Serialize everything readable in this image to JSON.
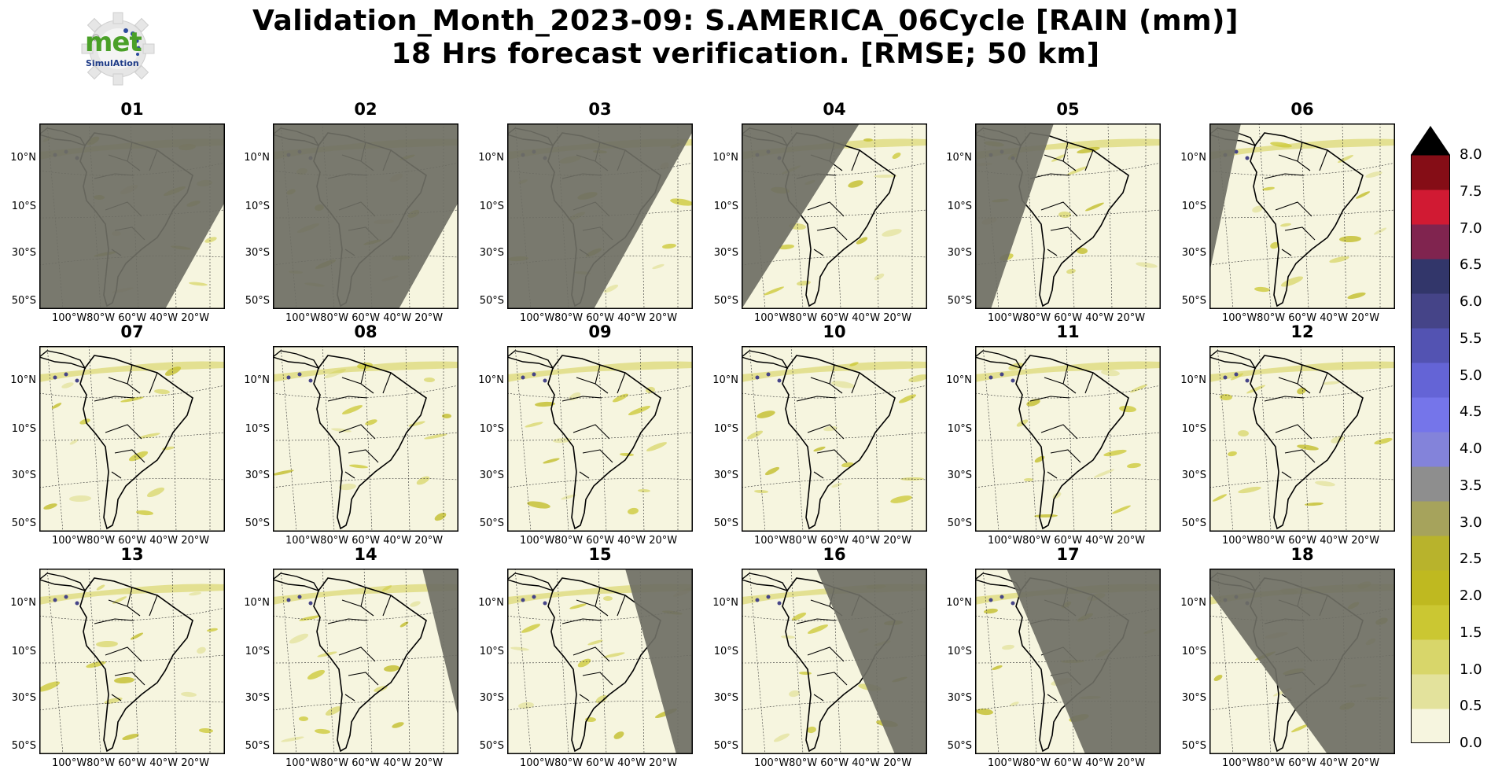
{
  "figure": {
    "title_line1": "Validation_Month_2023-09: S.AMERICA_06Cycle [RAIN (mm)]",
    "title_line2": "18 Hrs forecast verification.  [RMSE; 50 km]",
    "logo": {
      "text_main": "met",
      "text_sub": "SimulAtion",
      "icon": "gear-logo-icon"
    }
  },
  "panels": [
    {
      "label": "01",
      "shade": "right-lower"
    },
    {
      "label": "02",
      "shade": "right-lower"
    },
    {
      "label": "03",
      "shade": "right-diag"
    },
    {
      "label": "04",
      "shade": "left"
    },
    {
      "label": "05",
      "shade": "left-narrow"
    },
    {
      "label": "06",
      "shade": "left-thin"
    },
    {
      "label": "07",
      "shade": "none"
    },
    {
      "label": "08",
      "shade": "none"
    },
    {
      "label": "09",
      "shade": "none"
    },
    {
      "label": "10",
      "shade": "none"
    },
    {
      "label": "11",
      "shade": "none"
    },
    {
      "label": "12",
      "shade": "none"
    },
    {
      "label": "13",
      "shade": "none"
    },
    {
      "label": "14",
      "shade": "right-thin"
    },
    {
      "label": "15",
      "shade": "right-narrow"
    },
    {
      "label": "16",
      "shade": "right"
    },
    {
      "label": "17",
      "shade": "right-wide"
    },
    {
      "label": "18",
      "shade": "right-full"
    }
  ],
  "axes": {
    "lat_ticks": [
      "10°N",
      "10°S",
      "30°S",
      "50°S"
    ],
    "lon_ticks": [
      "100°W80°W 60°W 40°W 20°W"
    ]
  },
  "colorbar": {
    "ticks": [
      "8.0",
      "7.5",
      "7.0",
      "6.5",
      "6.0",
      "5.5",
      "5.0",
      "4.5",
      "4.0",
      "3.5",
      "3.0",
      "2.5",
      "2.0",
      "1.5",
      "1.0",
      "0.5",
      "0.0"
    ],
    "colors": [
      "#f6f5df",
      "#e3e29c",
      "#d8d66a",
      "#cbc732",
      "#bfb920",
      "#b8b32c",
      "#a6a35c",
      "#8e8e8e",
      "#8383da",
      "#7575ea",
      "#6464d6",
      "#5353b2",
      "#454488",
      "#32366a",
      "#80244f",
      "#d11a33",
      "#850d16"
    ],
    "extend_color": "#000000"
  },
  "style": {
    "shade_color": "#6e6e64",
    "background_rain": "#f6f5df",
    "land_outline": "#000000"
  }
}
